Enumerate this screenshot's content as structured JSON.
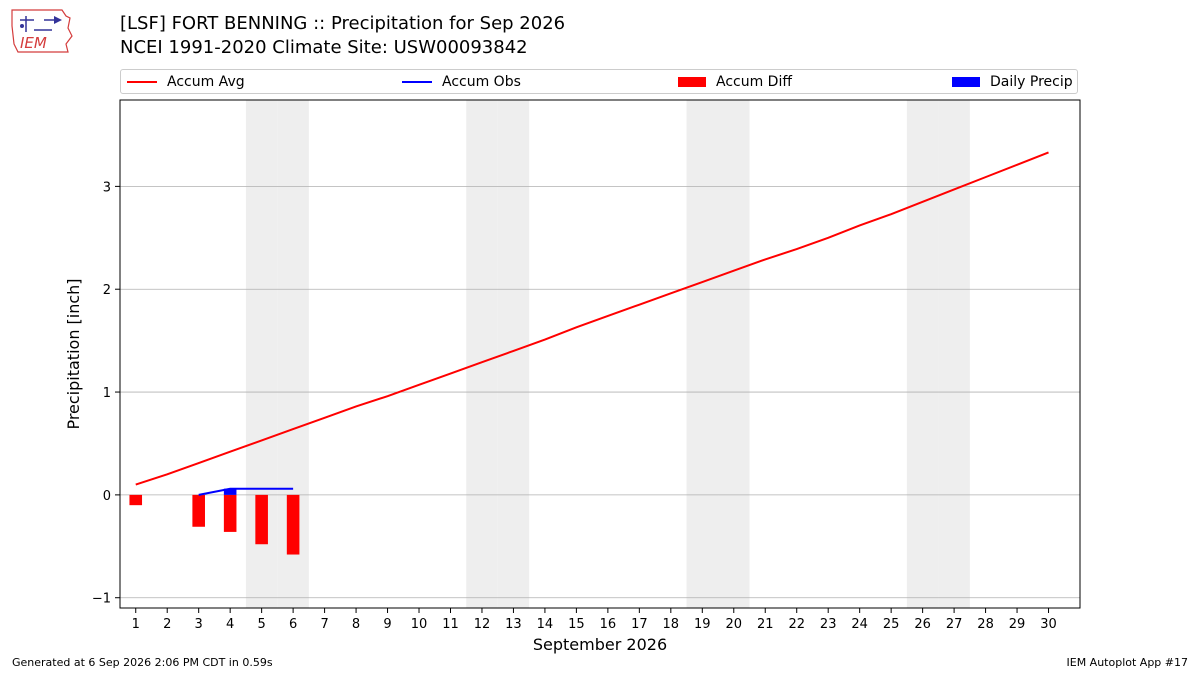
{
  "header": {
    "title_line1": "[LSF] FORT BENNING :: Precipitation for Sep 2026",
    "title_line2": "NCEI 1991-2020 Climate Site: USW00093842",
    "logo_text": "IEM"
  },
  "footer": {
    "generated": "Generated at 6 Sep 2026 2:06 PM CDT in 0.59s",
    "app": "IEM Autoplot App #17"
  },
  "colors": {
    "avg": "#ff0000",
    "obs": "#0000ff",
    "diff": "#ff0000",
    "daily": "#0000ff",
    "weekend": "#eeeeee",
    "grid": "#b0b0b0"
  },
  "legend": [
    {
      "label": "Accum Avg",
      "kind": "line",
      "color": "#ff0000"
    },
    {
      "label": "Accum Obs",
      "kind": "line",
      "color": "#0000ff"
    },
    {
      "label": "Accum Diff",
      "kind": "patch",
      "color": "#ff0000"
    },
    {
      "label": "Daily Precip",
      "kind": "patch",
      "color": "#0000ff"
    }
  ],
  "chart_data": {
    "type": "bar",
    "xlabel": "September 2026",
    "ylabel": "Precipitation [inch]",
    "xlim": [
      0.5,
      31.0
    ],
    "ylim": [
      -1.1,
      3.84
    ],
    "yticks": [
      -1,
      0,
      1,
      2,
      3
    ],
    "xtick_labels": [
      "1",
      "2",
      "3",
      "4",
      "5",
      "6",
      "7",
      "8",
      "9",
      "10",
      "11",
      "12",
      "13",
      "14",
      "15",
      "16",
      "17",
      "18",
      "19",
      "20",
      "21",
      "22",
      "23",
      "24",
      "25",
      "26",
      "27",
      "28",
      "29",
      "30"
    ],
    "weekend_days": [
      5,
      6,
      12,
      13,
      19,
      20,
      26,
      27
    ],
    "grid": "horizontal",
    "series": [
      {
        "name": "Accum Avg",
        "type": "line",
        "x": [
          1,
          2,
          3,
          4,
          5,
          6,
          7,
          8,
          9,
          10,
          11,
          12,
          13,
          14,
          15,
          16,
          17,
          18,
          19,
          20,
          21,
          22,
          23,
          24,
          25,
          26,
          27,
          28,
          29,
          30
        ],
        "values": [
          0.1,
          0.2,
          0.31,
          0.42,
          0.53,
          0.64,
          0.75,
          0.86,
          0.96,
          1.07,
          1.18,
          1.29,
          1.4,
          1.51,
          1.63,
          1.74,
          1.85,
          1.96,
          2.07,
          2.18,
          2.29,
          2.39,
          2.5,
          2.62,
          2.73,
          2.85,
          2.97,
          3.09,
          3.21,
          3.33
        ]
      },
      {
        "name": "Accum Obs",
        "type": "line",
        "x": [
          3,
          4,
          5,
          6
        ],
        "values": [
          0.0,
          0.06,
          0.06,
          0.06
        ]
      },
      {
        "name": "Accum Diff",
        "type": "bar",
        "x": [
          1,
          3,
          4,
          5,
          6
        ],
        "values": [
          -0.1,
          -0.31,
          -0.36,
          -0.48,
          -0.58
        ]
      },
      {
        "name": "Daily Precip",
        "type": "bar",
        "x": [
          4
        ],
        "values": [
          0.06
        ]
      }
    ]
  }
}
